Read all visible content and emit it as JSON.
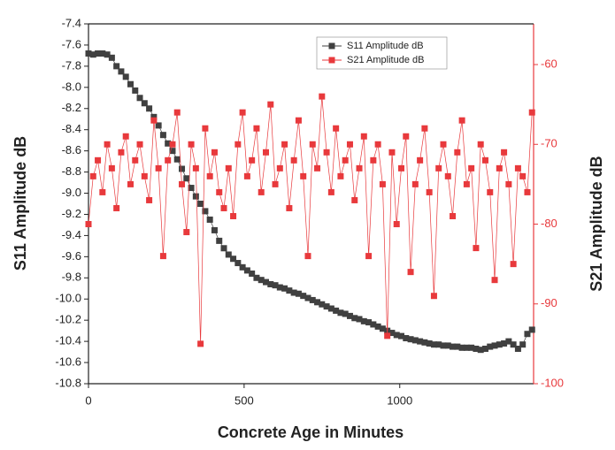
{
  "chart_data": {
    "type": "line",
    "xlabel": "Concrete Age in Minutes",
    "ylabel": "S11 Amplitude dB",
    "y2label": "S21 Amplitude dB",
    "x": [
      0,
      15,
      30,
      45,
      60,
      75,
      90,
      105,
      120,
      135,
      150,
      165,
      180,
      195,
      210,
      225,
      240,
      255,
      270,
      285,
      300,
      315,
      330,
      345,
      360,
      375,
      390,
      405,
      420,
      435,
      450,
      465,
      480,
      495,
      510,
      525,
      540,
      555,
      570,
      585,
      600,
      615,
      630,
      645,
      660,
      675,
      690,
      705,
      720,
      735,
      750,
      765,
      780,
      795,
      810,
      825,
      840,
      855,
      870,
      885,
      900,
      915,
      930,
      945,
      960,
      975,
      990,
      1005,
      1020,
      1035,
      1050,
      1065,
      1080,
      1095,
      1110,
      1125,
      1140,
      1155,
      1170,
      1185,
      1200,
      1215,
      1230,
      1245,
      1260,
      1275,
      1290,
      1305,
      1320,
      1335,
      1350,
      1365,
      1380,
      1395,
      1410,
      1425
    ],
    "series": [
      {
        "name": "S11 Amplitude dB",
        "color": "#404040",
        "values": [
          -7.68,
          -7.69,
          -7.68,
          -7.68,
          -7.69,
          -7.72,
          -7.8,
          -7.85,
          -7.9,
          -7.97,
          -8.03,
          -8.1,
          -8.15,
          -8.2,
          -8.28,
          -8.36,
          -8.45,
          -8.53,
          -8.6,
          -8.68,
          -8.77,
          -8.86,
          -8.95,
          -9.03,
          -9.1,
          -9.17,
          -9.25,
          -9.35,
          -9.45,
          -9.52,
          -9.58,
          -9.62,
          -9.66,
          -9.7,
          -9.73,
          -9.76,
          -9.8,
          -9.82,
          -9.84,
          -9.86,
          -9.87,
          -9.89,
          -9.9,
          -9.92,
          -9.94,
          -9.95,
          -9.97,
          -9.99,
          -10.01,
          -10.03,
          -10.05,
          -10.07,
          -10.09,
          -10.11,
          -10.13,
          -10.14,
          -10.16,
          -10.18,
          -10.19,
          -10.21,
          -10.22,
          -10.24,
          -10.26,
          -10.28,
          -10.3,
          -10.32,
          -10.34,
          -10.35,
          -10.37,
          -10.38,
          -10.39,
          -10.4,
          -10.41,
          -10.42,
          -10.43,
          -10.43,
          -10.44,
          -10.44,
          -10.45,
          -10.45,
          -10.46,
          -10.46,
          -10.46,
          -10.47,
          -10.48,
          -10.47,
          -10.45,
          -10.44,
          -10.43,
          -10.42,
          -10.4,
          -10.43,
          -10.47,
          -10.43,
          -10.33,
          -10.29
        ]
      },
      {
        "name": "S21 Amplitude dB",
        "color": "#e8393c",
        "axis": "y2",
        "values": [
          -80,
          -74,
          -72,
          -76,
          -70,
          -73,
          -78,
          -71,
          -69,
          -75,
          -72,
          -70,
          -74,
          -77,
          -67,
          -73,
          -84,
          -72,
          -70,
          -66,
          -75,
          -81,
          -70,
          -73,
          -95,
          -68,
          -74,
          -71,
          -76,
          -78,
          -73,
          -79,
          -70,
          -66,
          -74,
          -72,
          -68,
          -76,
          -71,
          -65,
          -75,
          -73,
          -70,
          -78,
          -72,
          -67,
          -74,
          -84,
          -70,
          -73,
          -64,
          -71,
          -76,
          -68,
          -74,
          -72,
          -70,
          -77,
          -73,
          -69,
          -84,
          -72,
          -70,
          -75,
          -94,
          -71,
          -80,
          -73,
          -69,
          -86,
          -75,
          -72,
          -68,
          -76,
          -89,
          -73,
          -70,
          -74,
          -79,
          -71,
          -67,
          -75,
          -73,
          -83,
          -70,
          -72,
          -76,
          -87,
          -73,
          -71,
          -75,
          -85,
          -73,
          -74,
          -76,
          -66
        ]
      }
    ],
    "xlim": [
      0,
      1430
    ],
    "xticks": [
      0,
      500,
      1000
    ],
    "ylim": [
      -10.8,
      -7.4
    ],
    "yticks": [
      -7.4,
      -7.6,
      -7.8,
      {
        "value": -8,
        "label": "-8.0"
      },
      -8.2,
      -8.4,
      -8.6,
      -8.8,
      {
        "value": -9,
        "label": "-9.0"
      },
      -9.2,
      -9.4,
      -9.6,
      -9.8,
      {
        "value": -10,
        "label": "-10.0"
      },
      -10.2,
      -10.4,
      -10.6,
      -10.8
    ],
    "y2lim": [
      -100,
      -54.9
    ],
    "y2ticks": [
      -60,
      -70,
      -80,
      -90,
      -100
    ],
    "y2color": "#e8393c",
    "legend": "top"
  }
}
